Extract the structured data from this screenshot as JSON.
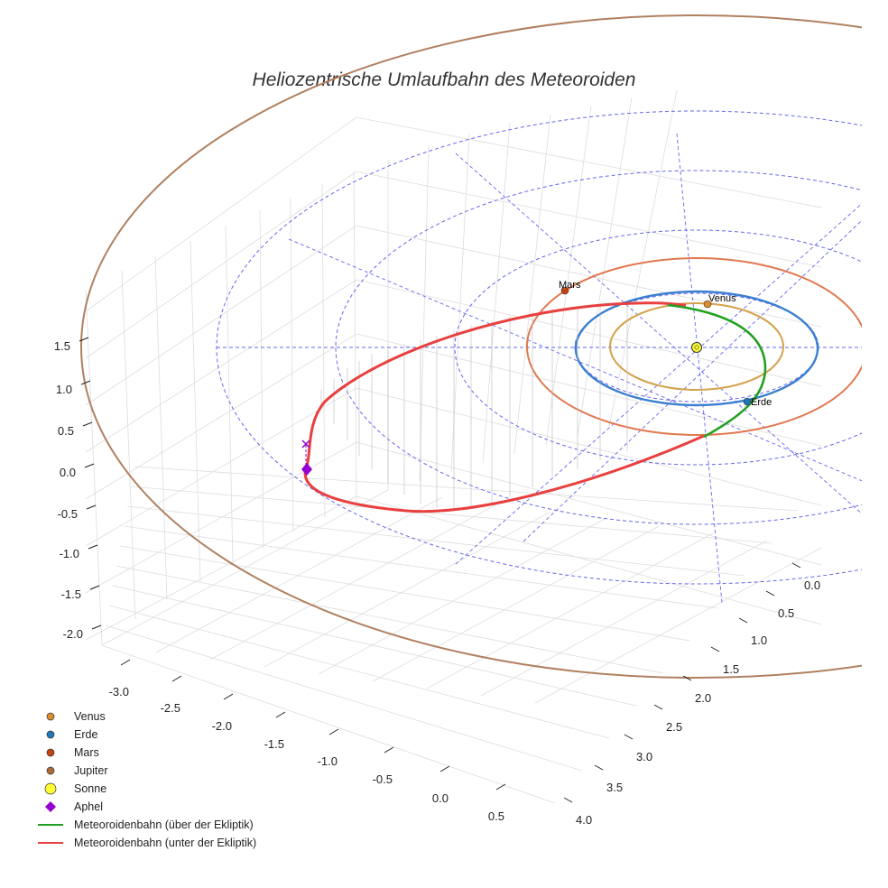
{
  "chart_data": {
    "type": "scatter",
    "projection": "3d",
    "title": "Heliozentrische Umlaufbahn des Meteoroiden",
    "xlabel": "",
    "ylabel": "",
    "zlabel": "",
    "x_ticks": [
      "-3.0",
      "-2.5",
      "-2.0",
      "-1.5",
      "-1.0",
      "-0.5",
      "0.0",
      "0.5"
    ],
    "y_ticks": [
      "0.0",
      "0.5",
      "1.0",
      "1.5",
      "2.0",
      "2.5",
      "3.0",
      "3.5",
      "4.0"
    ],
    "z_ticks": [
      "1.5",
      "1.0",
      "0.5",
      "0.0",
      "-0.5",
      "-1.0",
      "-1.5",
      "-2.0"
    ],
    "xlim": [
      -3.3,
      0.8
    ],
    "ylim": [
      -0.3,
      4.2
    ],
    "zlim": [
      -2.3,
      1.9
    ],
    "grid": true,
    "legend_position": "bottom-left",
    "bodies": [
      {
        "name": "Venus",
        "label": "Venus",
        "color": "#d98d2c",
        "orbit_color": "#d4a24c",
        "orbit_radius_au": 0.72
      },
      {
        "name": "Erde",
        "label": "Erde",
        "color": "#1f77b4",
        "orbit_color": "#3a7fd0",
        "orbit_radius_au": 1.0
      },
      {
        "name": "Mars",
        "label": "Mars",
        "color": "#c1440e",
        "orbit_color": "#e07850",
        "orbit_radius_au": 1.52
      },
      {
        "name": "Jupiter",
        "label": "",
        "color": "#b07850",
        "orbit_color": "#b08060",
        "orbit_radius_au": 5.2
      }
    ],
    "sun": {
      "name": "Sonne",
      "color": "#ffff33"
    },
    "aphel": {
      "name": "Aphel",
      "color": "#9400d3",
      "marker": "diamond"
    },
    "meteoroid_orbit": {
      "above_ecliptic": {
        "name": "Meteoroidenbahn (über der Ekliptik)",
        "color": "#22a022"
      },
      "below_ecliptic": {
        "name": "Meteoroidenbahn (unter der Ekliptik)",
        "color": "#e8403f"
      }
    },
    "ecliptic_grid_color": "#6666ee",
    "legend": [
      {
        "label": "Venus",
        "marker": "circle",
        "color": "#d98d2c"
      },
      {
        "label": "Erde",
        "marker": "circle",
        "color": "#1f77b4"
      },
      {
        "label": "Mars",
        "marker": "circle",
        "color": "#c1440e"
      },
      {
        "label": "Jupiter",
        "marker": "circle",
        "color": "#b06a3a"
      },
      {
        "label": "Sonne",
        "marker": "circle-large",
        "color": "#ffff33"
      },
      {
        "label": "Aphel",
        "marker": "diamond",
        "color": "#9400d3"
      },
      {
        "label": "Meteoroidenbahn (über der Ekliptik)",
        "marker": "line",
        "color": "#22a022"
      },
      {
        "label": "Meteoroidenbahn (unter der Ekliptik)",
        "marker": "line",
        "color": "#e8403f"
      }
    ]
  }
}
